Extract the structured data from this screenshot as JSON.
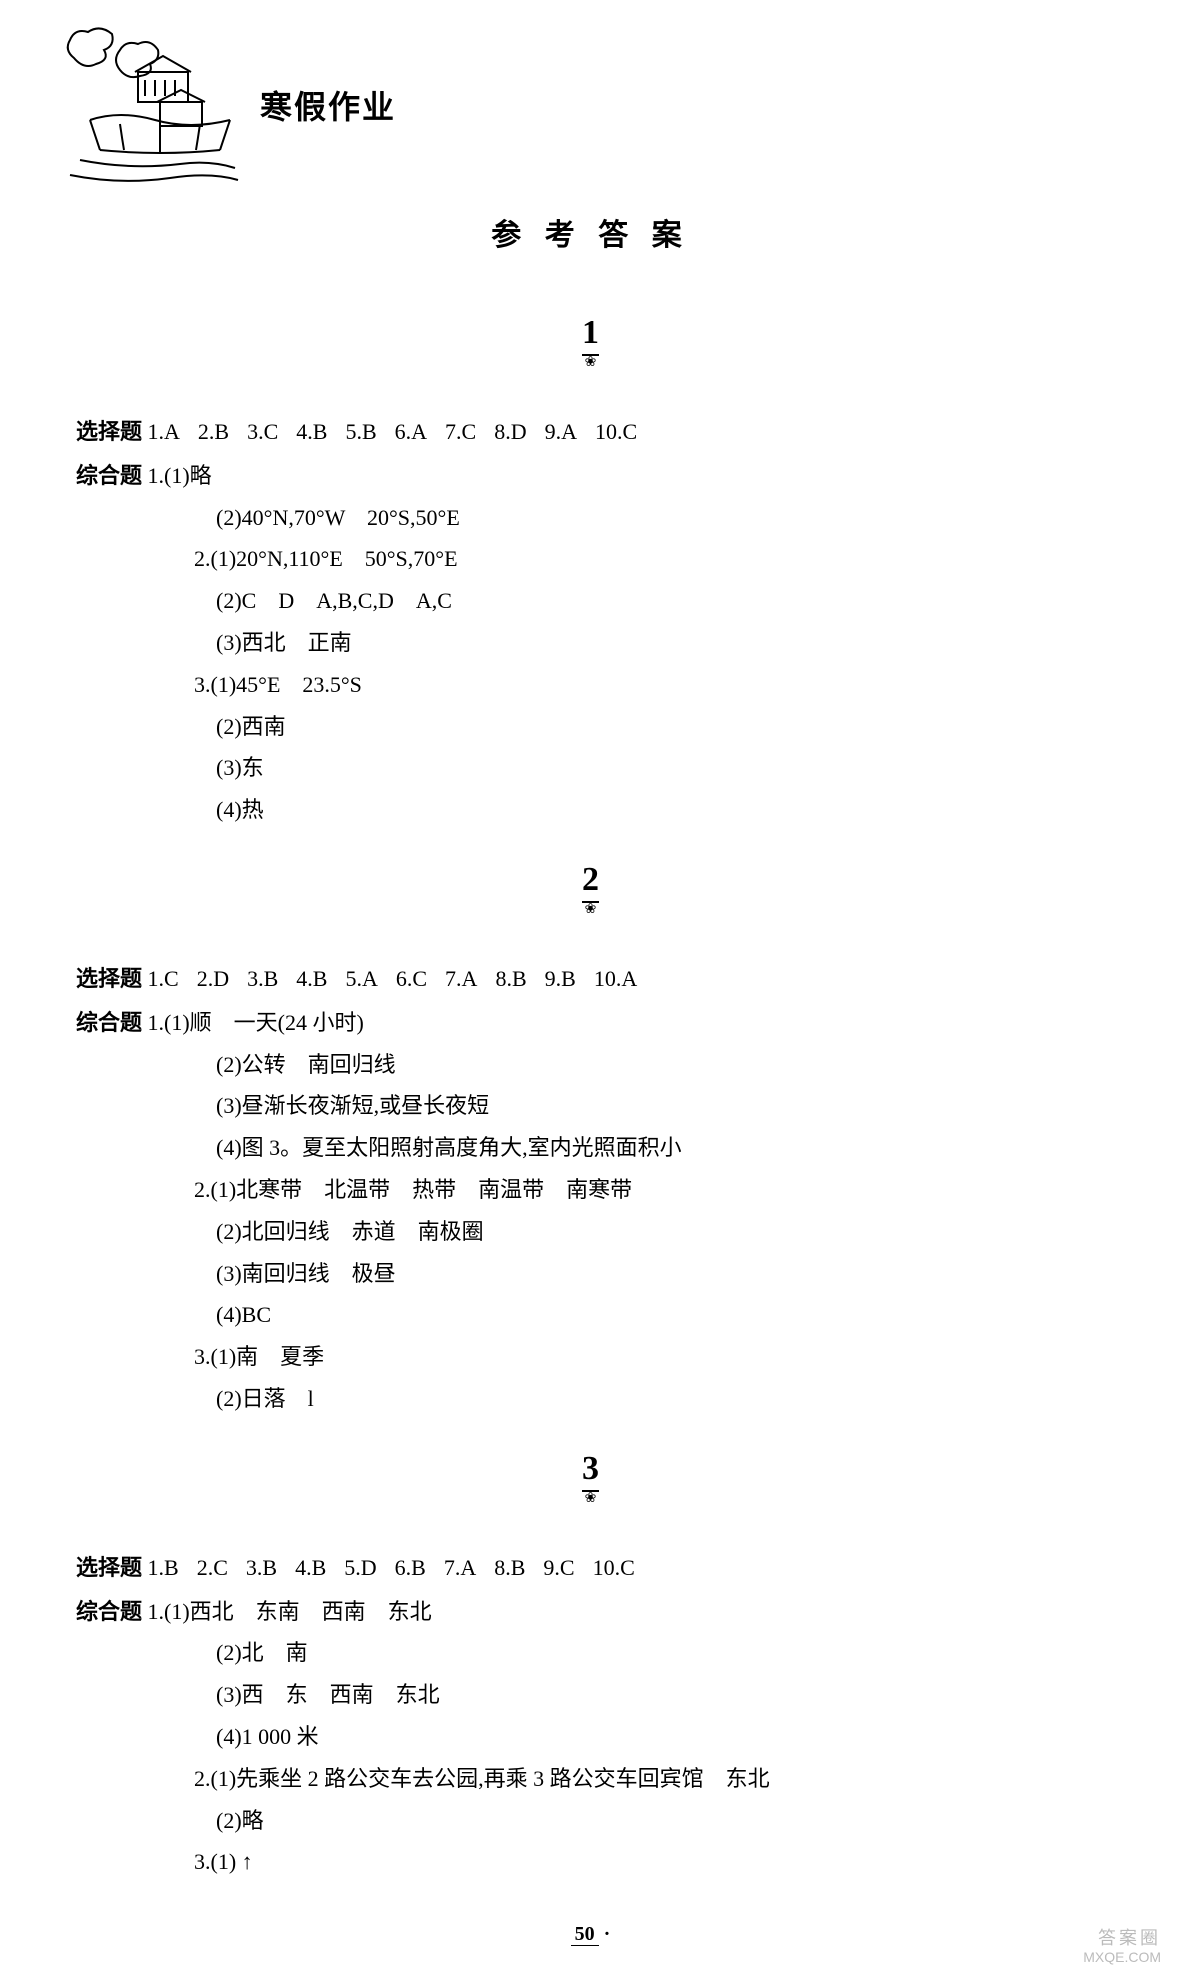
{
  "header": {
    "book_title": "寒假作业"
  },
  "main_title": "参 考 答 案",
  "sections": [
    {
      "marker": "1",
      "mc_label": "选择题",
      "mc": [
        {
          "n": "1",
          "a": "A"
        },
        {
          "n": "2",
          "a": "B"
        },
        {
          "n": "3",
          "a": "C"
        },
        {
          "n": "4",
          "a": "B"
        },
        {
          "n": "5",
          "a": "B"
        },
        {
          "n": "6",
          "a": "A"
        },
        {
          "n": "7",
          "a": "C"
        },
        {
          "n": "8",
          "a": "D"
        },
        {
          "n": "9",
          "a": "A"
        },
        {
          "n": "10",
          "a": "C"
        }
      ],
      "comp_label": "综合题",
      "lines": [
        {
          "t": "1.(1)略",
          "indent": 0
        },
        {
          "t": "(2)40°N,70°W　20°S,50°E",
          "indent": 2
        },
        {
          "t": "2.(1)20°N,110°E　50°S,70°E",
          "indent": 1
        },
        {
          "t": "(2)C　D　A,B,C,D　A,C",
          "indent": 2
        },
        {
          "t": "(3)西北　正南",
          "indent": 2
        },
        {
          "t": "3.(1)45°E　23.5°S",
          "indent": 1
        },
        {
          "t": "(2)西南",
          "indent": 2
        },
        {
          "t": "(3)东",
          "indent": 2
        },
        {
          "t": "(4)热",
          "indent": 2
        }
      ]
    },
    {
      "marker": "2",
      "mc_label": "选择题",
      "mc": [
        {
          "n": "1",
          "a": "C"
        },
        {
          "n": "2",
          "a": "D"
        },
        {
          "n": "3",
          "a": "B"
        },
        {
          "n": "4",
          "a": "B"
        },
        {
          "n": "5",
          "a": "A"
        },
        {
          "n": "6",
          "a": "C"
        },
        {
          "n": "7",
          "a": "A"
        },
        {
          "n": "8",
          "a": "B"
        },
        {
          "n": "9",
          "a": "B"
        },
        {
          "n": "10",
          "a": "A"
        }
      ],
      "comp_label": "综合题",
      "lines": [
        {
          "t": "1.(1)顺　一天(24 小时)",
          "indent": 0
        },
        {
          "t": "(2)公转　南回归线",
          "indent": 2
        },
        {
          "t": "(3)昼渐长夜渐短,或昼长夜短",
          "indent": 2
        },
        {
          "t": "(4)图 3。夏至太阳照射高度角大,室内光照面积小",
          "indent": 2
        },
        {
          "t": "2.(1)北寒带　北温带　热带　南温带　南寒带",
          "indent": 1
        },
        {
          "t": "(2)北回归线　赤道　南极圈",
          "indent": 2
        },
        {
          "t": "(3)南回归线　极昼",
          "indent": 2
        },
        {
          "t": "(4)BC",
          "indent": 2
        },
        {
          "t": "3.(1)南　夏季",
          "indent": 1
        },
        {
          "t": "(2)日落　l",
          "indent": 2
        }
      ]
    },
    {
      "marker": "3",
      "mc_label": "选择题",
      "mc": [
        {
          "n": "1",
          "a": "B"
        },
        {
          "n": "2",
          "a": "C"
        },
        {
          "n": "3",
          "a": "B"
        },
        {
          "n": "4",
          "a": "B"
        },
        {
          "n": "5",
          "a": "D"
        },
        {
          "n": "6",
          "a": "B"
        },
        {
          "n": "7",
          "a": "A"
        },
        {
          "n": "8",
          "a": "B"
        },
        {
          "n": "9",
          "a": "C"
        },
        {
          "n": "10",
          "a": "C"
        }
      ],
      "comp_label": "综合题",
      "lines": [
        {
          "t": "1.(1)西北　东南　西南　东北",
          "indent": 0
        },
        {
          "t": "(2)北　南",
          "indent": 2
        },
        {
          "t": "(3)西　东　西南　东北",
          "indent": 2
        },
        {
          "t": "(4)1 000 米",
          "indent": 2
        },
        {
          "t": "2.(1)先乘坐 2 路公交车去公园,再乘 3 路公交车回宾馆　东北",
          "indent": 1
        },
        {
          "t": "(2)略",
          "indent": 2
        },
        {
          "t": "3.(1) ↑",
          "indent": 1
        }
      ]
    }
  ],
  "page_number": "50",
  "watermark": {
    "top": "答案圈",
    "bottom": "MXQE.COM"
  }
}
